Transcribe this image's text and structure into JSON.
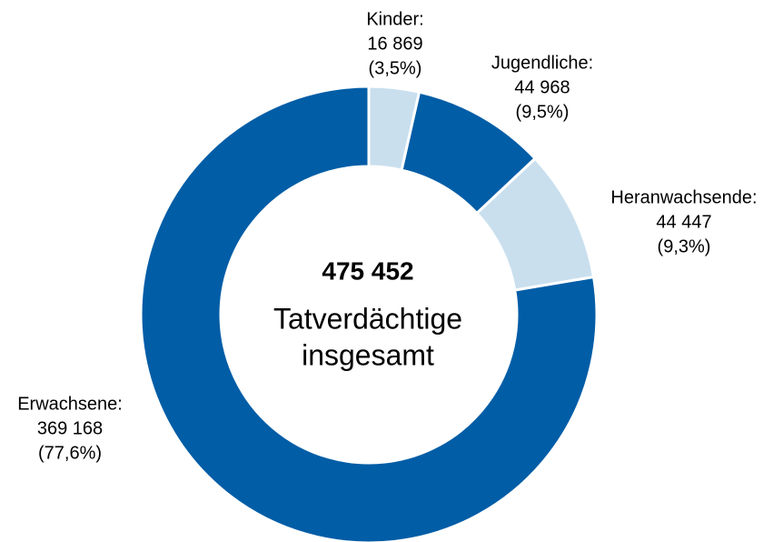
{
  "chart_data": {
    "type": "pie",
    "donut": true,
    "categories": [
      "Kinder:",
      "Jugendliche:",
      "Heranwachsende:",
      "Erwachsene:"
    ],
    "values": [
      16869,
      44968,
      44447,
      369168
    ],
    "value_labels": [
      "16 869",
      "44 968",
      "44 447",
      "369 168"
    ],
    "percent_labels": [
      "(3,5%)",
      "(9,5%)",
      "(9,3%)",
      "(77,6%)"
    ],
    "colors": [
      "#c9dfee",
      "#005da6",
      "#c9dfee",
      "#005da6"
    ],
    "center_label": "475 452",
    "center_text": [
      "Tatverdächtige",
      "insgesamt"
    ]
  }
}
